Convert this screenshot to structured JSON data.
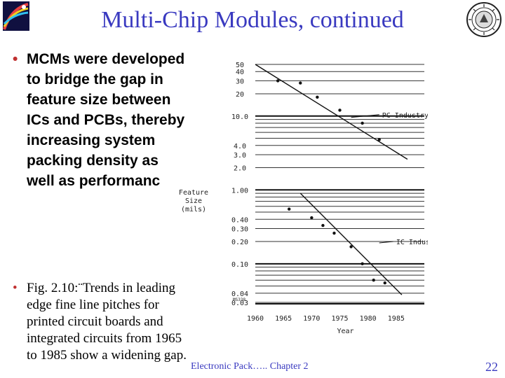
{
  "slide": {
    "title": "Multi-Chip Modules, continued",
    "bullet1": "MCMs were developed to bridge the gap in feature size between ICs and PCBs, thereby increasing system packing density as well as performanc",
    "bullet2": "Fig. 2.10:¨Trends in leading edge fine line pitches for printed circuit boards and integrated circuits from 1965 to 1985 show a widening gap.",
    "bullet_marker": "•",
    "footer": "Electronic Pack….. Chapter 2",
    "page_number": "22"
  },
  "chart_data": {
    "type": "line",
    "ylabel_lines": [
      "Feature",
      "Size",
      "(mils)"
    ],
    "xlabel": "Year",
    "y_scale": "log",
    "y_ticks": [
      "50",
      "40",
      "30",
      "20",
      "10.0",
      "4.0",
      "3.0",
      "2.0",
      "1.00",
      "0.40",
      "0.30",
      "0.20",
      "0.10",
      "0.04",
      "0.03"
    ],
    "y_tick_values": [
      50,
      40,
      30,
      20,
      10,
      4,
      3,
      2,
      1,
      0.4,
      0.3,
      0.2,
      0.1,
      0.04,
      0.03
    ],
    "x_ticks": [
      "1960",
      "1965",
      "1970",
      "1975",
      "1980",
      "1985"
    ],
    "x_tick_values": [
      1960,
      1965,
      1970,
      1975,
      1980,
      1985
    ],
    "figure_code": "MS338",
    "series": [
      {
        "name": "PC Industry",
        "line": [
          [
            1960,
            50
          ],
          [
            1987,
            2.6
          ]
        ],
        "points": [
          [
            1964,
            30
          ],
          [
            1968,
            28
          ],
          [
            1971,
            18
          ],
          [
            1975,
            12
          ],
          [
            1979,
            8
          ],
          [
            1982,
            4.8
          ]
        ]
      },
      {
        "name": "IC Industry",
        "line": [
          [
            1968,
            0.9
          ],
          [
            1986,
            0.038
          ]
        ],
        "points": [
          [
            1966,
            0.55
          ],
          [
            1970,
            0.42
          ],
          [
            1972,
            0.33
          ],
          [
            1974,
            0.26
          ],
          [
            1977,
            0.17
          ],
          [
            1979,
            0.1
          ],
          [
            1981,
            0.06
          ],
          [
            1983,
            0.055
          ]
        ]
      }
    ],
    "series_label_positions": [
      "right",
      "right"
    ]
  }
}
